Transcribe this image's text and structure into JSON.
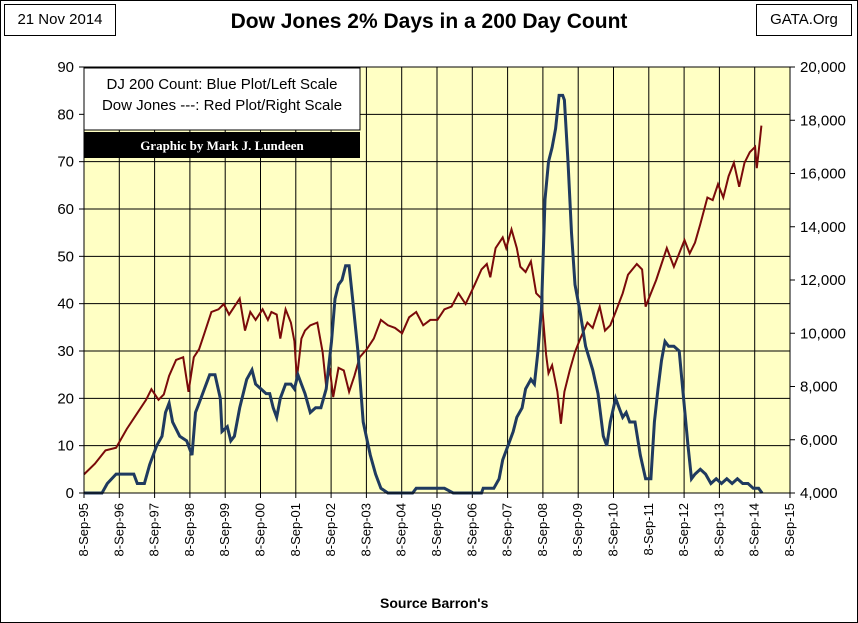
{
  "header": {
    "date_tag": "21 Nov 2014",
    "title": "Dow Jones 2% Days in a 200 Day Count",
    "source_tag": "GATA.Org"
  },
  "legend": {
    "line1": "DJ 200 Count: Blue Plot/Left Scale",
    "line2": "Dow Jones ---: Red Plot/Right Scale",
    "credit": "Graphic by Mark J. Lundeen"
  },
  "footer": {
    "source": "Source Barron's"
  },
  "colors": {
    "plot_bg": "#ffffc4",
    "count_line": "#1f3a5f",
    "dow_line": "#7a0a0a",
    "grid": "#000000",
    "credit_bg": "#000000"
  },
  "chart_data": {
    "type": "line",
    "xlabel": "Source Barron's",
    "x_ticks": [
      "8-Sep-95",
      "8-Sep-96",
      "8-Sep-97",
      "8-Sep-98",
      "8-Sep-99",
      "8-Sep-00",
      "8-Sep-01",
      "8-Sep-02",
      "8-Sep-03",
      "8-Sep-04",
      "8-Sep-05",
      "8-Sep-06",
      "8-Sep-07",
      "8-Sep-08",
      "8-Sep-09",
      "8-Sep-10",
      "8-Sep-11",
      "8-Sep-12",
      "8-Sep-13",
      "8-Sep-14",
      "8-Sep-15"
    ],
    "x_range": [
      1995.69,
      2015.69
    ],
    "left_axis": {
      "range": [
        0,
        90
      ],
      "ticks": [
        "0",
        "10",
        "20",
        "30",
        "40",
        "50",
        "60",
        "70",
        "80",
        "90"
      ]
    },
    "right_axis": {
      "range": [
        4000,
        20000
      ],
      "ticks": [
        "4,000",
        "6,000",
        "8,000",
        "10,000",
        "12,000",
        "14,000",
        "16,000",
        "18,000",
        "20,000"
      ]
    },
    "grid": true,
    "legend_position": "top-left",
    "series": [
      {
        "axis": "left",
        "points": [
          [
            1995.69,
            0
          ],
          [
            1996.2,
            0
          ],
          [
            1996.35,
            2
          ],
          [
            1996.6,
            4
          ],
          [
            1996.9,
            4
          ],
          [
            1997.1,
            4
          ],
          [
            1997.2,
            2
          ],
          [
            1997.4,
            2
          ],
          [
            1997.55,
            6
          ],
          [
            1997.75,
            10
          ],
          [
            1997.9,
            12
          ],
          [
            1998.0,
            17
          ],
          [
            1998.1,
            19
          ],
          [
            1998.2,
            15
          ],
          [
            1998.4,
            12
          ],
          [
            1998.6,
            11
          ],
          [
            1998.75,
            8
          ],
          [
            1998.85,
            17
          ],
          [
            1998.95,
            19
          ],
          [
            1999.1,
            22
          ],
          [
            1999.25,
            25
          ],
          [
            1999.4,
            25
          ],
          [
            1999.55,
            20
          ],
          [
            1999.6,
            13
          ],
          [
            1999.75,
            14
          ],
          [
            1999.85,
            11
          ],
          [
            1999.95,
            12
          ],
          [
            2000.1,
            18
          ],
          [
            2000.3,
            24
          ],
          [
            2000.45,
            26
          ],
          [
            2000.55,
            23
          ],
          [
            2000.7,
            22
          ],
          [
            2000.85,
            21
          ],
          [
            2000.95,
            21
          ],
          [
            2001.05,
            18
          ],
          [
            2001.15,
            16
          ],
          [
            2001.25,
            20
          ],
          [
            2001.4,
            23
          ],
          [
            2001.55,
            23
          ],
          [
            2001.65,
            22
          ],
          [
            2001.75,
            25
          ],
          [
            2001.85,
            23
          ],
          [
            2001.95,
            21
          ],
          [
            2002.1,
            17
          ],
          [
            2002.25,
            18
          ],
          [
            2002.4,
            18
          ],
          [
            2002.55,
            22
          ],
          [
            2002.7,
            32
          ],
          [
            2002.8,
            41
          ],
          [
            2002.9,
            44
          ],
          [
            2003.0,
            45
          ],
          [
            2003.1,
            48
          ],
          [
            2003.2,
            48
          ],
          [
            2003.3,
            41
          ],
          [
            2003.45,
            30
          ],
          [
            2003.6,
            15
          ],
          [
            2003.8,
            8
          ],
          [
            2003.95,
            4
          ],
          [
            2004.1,
            1
          ],
          [
            2004.3,
            0
          ],
          [
            2004.6,
            0
          ],
          [
            2004.85,
            0
          ],
          [
            2005.0,
            0
          ],
          [
            2005.1,
            1
          ],
          [
            2005.9,
            1
          ],
          [
            2006.15,
            0
          ],
          [
            2006.6,
            0
          ],
          [
            2006.95,
            0
          ],
          [
            2007.0,
            1
          ],
          [
            2007.3,
            1
          ],
          [
            2007.45,
            3
          ],
          [
            2007.55,
            7
          ],
          [
            2007.7,
            10
          ],
          [
            2007.85,
            13
          ],
          [
            2007.95,
            16
          ],
          [
            2008.1,
            18
          ],
          [
            2008.2,
            22
          ],
          [
            2008.35,
            24
          ],
          [
            2008.45,
            23
          ],
          [
            2008.55,
            30
          ],
          [
            2008.65,
            39
          ],
          [
            2008.75,
            62
          ],
          [
            2008.85,
            70
          ],
          [
            2008.95,
            73
          ],
          [
            2009.05,
            77
          ],
          [
            2009.15,
            84
          ],
          [
            2009.25,
            84
          ],
          [
            2009.3,
            83
          ],
          [
            2009.4,
            70
          ],
          [
            2009.5,
            55
          ],
          [
            2009.6,
            44
          ],
          [
            2009.75,
            38
          ],
          [
            2009.9,
            31
          ],
          [
            2010.1,
            26
          ],
          [
            2010.25,
            21
          ],
          [
            2010.4,
            12
          ],
          [
            2010.5,
            10
          ],
          [
            2010.6,
            15
          ],
          [
            2010.75,
            20
          ],
          [
            2010.85,
            18
          ],
          [
            2010.95,
            16
          ],
          [
            2011.05,
            17
          ],
          [
            2011.15,
            15
          ],
          [
            2011.3,
            15
          ],
          [
            2011.45,
            8
          ],
          [
            2011.6,
            3
          ],
          [
            2011.75,
            3
          ],
          [
            2011.85,
            15
          ],
          [
            2011.95,
            22
          ],
          [
            2012.05,
            28
          ],
          [
            2012.15,
            32
          ],
          [
            2012.25,
            31
          ],
          [
            2012.4,
            31
          ],
          [
            2012.55,
            30
          ],
          [
            2012.65,
            22
          ],
          [
            2012.8,
            10
          ],
          [
            2012.9,
            3
          ],
          [
            2013.0,
            4
          ],
          [
            2013.15,
            5
          ],
          [
            2013.3,
            4
          ],
          [
            2013.45,
            2
          ],
          [
            2013.6,
            3
          ],
          [
            2013.75,
            2
          ],
          [
            2013.9,
            3
          ],
          [
            2014.05,
            2
          ],
          [
            2014.2,
            3
          ],
          [
            2014.35,
            2
          ],
          [
            2014.5,
            2
          ],
          [
            2014.65,
            1
          ],
          [
            2014.8,
            1
          ],
          [
            2014.9,
            0
          ]
        ]
      },
      {
        "axis": "right",
        "points": [
          [
            1995.69,
            4700
          ],
          [
            1996.0,
            5100
          ],
          [
            1996.3,
            5600
          ],
          [
            1996.6,
            5700
          ],
          [
            1996.9,
            6400
          ],
          [
            1997.2,
            7000
          ],
          [
            1997.45,
            7500
          ],
          [
            1997.6,
            7900
          ],
          [
            1997.8,
            7500
          ],
          [
            1997.95,
            7700
          ],
          [
            1998.1,
            8400
          ],
          [
            1998.3,
            9000
          ],
          [
            1998.5,
            9100
          ],
          [
            1998.65,
            7800
          ],
          [
            1998.8,
            9100
          ],
          [
            1998.95,
            9400
          ],
          [
            1999.1,
            10000
          ],
          [
            1999.3,
            10800
          ],
          [
            1999.5,
            10900
          ],
          [
            1999.65,
            11100
          ],
          [
            1999.8,
            10700
          ],
          [
            1999.95,
            11000
          ],
          [
            2000.1,
            11300
          ],
          [
            2000.25,
            10100
          ],
          [
            2000.4,
            10800
          ],
          [
            2000.55,
            10500
          ],
          [
            2000.75,
            10900
          ],
          [
            2000.9,
            10500
          ],
          [
            2001.0,
            10800
          ],
          [
            2001.15,
            10700
          ],
          [
            2001.25,
            9800
          ],
          [
            2001.4,
            10900
          ],
          [
            2001.55,
            10400
          ],
          [
            2001.65,
            9700
          ],
          [
            2001.72,
            8300
          ],
          [
            2001.85,
            9800
          ],
          [
            2001.95,
            10100
          ],
          [
            2002.1,
            10300
          ],
          [
            2002.3,
            10400
          ],
          [
            2002.45,
            9300
          ],
          [
            2002.55,
            8000
          ],
          [
            2002.65,
            8700
          ],
          [
            2002.75,
            7600
          ],
          [
            2002.9,
            8700
          ],
          [
            2003.05,
            8600
          ],
          [
            2003.2,
            7800
          ],
          [
            2003.35,
            8400
          ],
          [
            2003.5,
            9100
          ],
          [
            2003.7,
            9400
          ],
          [
            2003.9,
            9800
          ],
          [
            2004.1,
            10500
          ],
          [
            2004.3,
            10300
          ],
          [
            2004.5,
            10200
          ],
          [
            2004.7,
            10000
          ],
          [
            2004.9,
            10600
          ],
          [
            2005.1,
            10800
          ],
          [
            2005.3,
            10300
          ],
          [
            2005.5,
            10500
          ],
          [
            2005.7,
            10500
          ],
          [
            2005.9,
            10900
          ],
          [
            2006.1,
            11000
          ],
          [
            2006.3,
            11500
          ],
          [
            2006.5,
            11100
          ],
          [
            2006.75,
            11800
          ],
          [
            2006.95,
            12400
          ],
          [
            2007.1,
            12600
          ],
          [
            2007.2,
            12100
          ],
          [
            2007.35,
            13200
          ],
          [
            2007.55,
            13600
          ],
          [
            2007.65,
            13200
          ],
          [
            2007.8,
            13900
          ],
          [
            2007.95,
            13200
          ],
          [
            2008.05,
            12500
          ],
          [
            2008.2,
            12300
          ],
          [
            2008.35,
            12700
          ],
          [
            2008.5,
            11500
          ],
          [
            2008.65,
            11300
          ],
          [
            2008.78,
            9200
          ],
          [
            2008.85,
            8500
          ],
          [
            2008.95,
            8800
          ],
          [
            2009.1,
            7800
          ],
          [
            2009.2,
            6600
          ],
          [
            2009.3,
            7800
          ],
          [
            2009.45,
            8600
          ],
          [
            2009.6,
            9300
          ],
          [
            2009.75,
            9800
          ],
          [
            2009.95,
            10400
          ],
          [
            2010.1,
            10200
          ],
          [
            2010.3,
            11000
          ],
          [
            2010.45,
            10100
          ],
          [
            2010.6,
            10300
          ],
          [
            2010.75,
            10800
          ],
          [
            2010.95,
            11500
          ],
          [
            2011.1,
            12200
          ],
          [
            2011.35,
            12600
          ],
          [
            2011.5,
            12400
          ],
          [
            2011.6,
            11000
          ],
          [
            2011.75,
            11500
          ],
          [
            2011.9,
            12000
          ],
          [
            2012.05,
            12600
          ],
          [
            2012.2,
            13200
          ],
          [
            2012.4,
            12500
          ],
          [
            2012.55,
            13000
          ],
          [
            2012.7,
            13500
          ],
          [
            2012.85,
            13000
          ],
          [
            2013.0,
            13400
          ],
          [
            2013.15,
            14100
          ],
          [
            2013.35,
            15100
          ],
          [
            2013.5,
            15000
          ],
          [
            2013.65,
            15600
          ],
          [
            2013.8,
            15100
          ],
          [
            2013.95,
            15900
          ],
          [
            2014.1,
            16400
          ],
          [
            2014.25,
            15500
          ],
          [
            2014.4,
            16400
          ],
          [
            2014.55,
            16800
          ],
          [
            2014.7,
            17000
          ],
          [
            2014.75,
            16200
          ],
          [
            2014.8,
            16800
          ],
          [
            2014.88,
            17800
          ]
        ]
      }
    ]
  }
}
